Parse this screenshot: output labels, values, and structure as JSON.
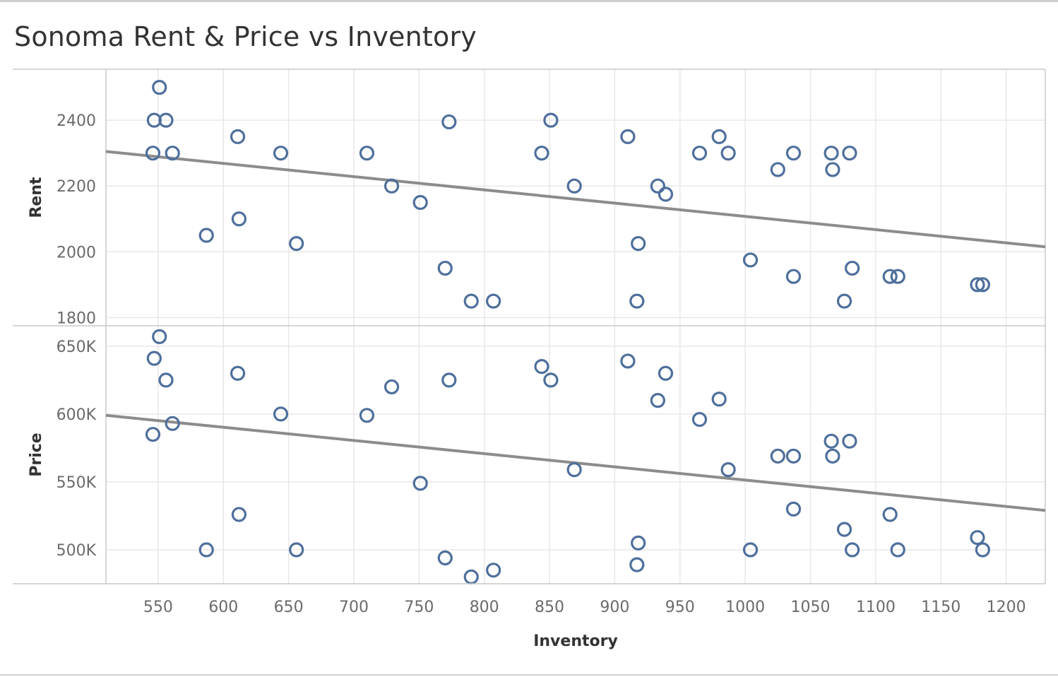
{
  "title": "Sonoma Rent & Price vs Inventory",
  "colors": {
    "marker": "#4e6f9c",
    "trend": "#8c8c8c",
    "grid": "#e8e8e8",
    "border": "#c8c8c8"
  },
  "chart_data": {
    "type": "scatter",
    "title": "Sonoma Rent & Price vs Inventory",
    "xlabel": "Inventory",
    "x_ticks": [
      "550",
      "600",
      "650",
      "700",
      "750",
      "800",
      "850",
      "900",
      "950",
      "1000",
      "1050",
      "1100",
      "1150",
      "1200"
    ],
    "xlim": [
      510,
      1230
    ],
    "panels": [
      {
        "ylabel": "Rent",
        "ylim": [
          1775,
          2555
        ],
        "y_ticks": [
          {
            "value": 1800,
            "label": "1800"
          },
          {
            "value": 2000,
            "label": "2000"
          },
          {
            "value": 2200,
            "label": "2200"
          },
          {
            "value": 2400,
            "label": "2400"
          }
        ],
        "trend": [
          [
            510,
            2305
          ],
          [
            1230,
            2015
          ]
        ],
        "points": [
          [
            551,
            2500
          ],
          [
            547,
            2400
          ],
          [
            556,
            2400
          ],
          [
            546,
            2300
          ],
          [
            561,
            2300
          ],
          [
            611,
            2350
          ],
          [
            644,
            2300
          ],
          [
            710,
            2300
          ],
          [
            729,
            2200
          ],
          [
            751,
            2150
          ],
          [
            773,
            2395
          ],
          [
            770,
            1950
          ],
          [
            790,
            1850
          ],
          [
            807,
            1850
          ],
          [
            844,
            2300
          ],
          [
            851,
            2400
          ],
          [
            869,
            2200
          ],
          [
            910,
            2350
          ],
          [
            933,
            2200
          ],
          [
            939,
            2175
          ],
          [
            918,
            2025
          ],
          [
            917,
            1850
          ],
          [
            965,
            2300
          ],
          [
            980,
            2350
          ],
          [
            987,
            2300
          ],
          [
            1004,
            1975
          ],
          [
            1025,
            2250
          ],
          [
            1037,
            2300
          ],
          [
            1037,
            1925
          ],
          [
            1066,
            2300
          ],
          [
            1067,
            2250
          ],
          [
            1080,
            2300
          ],
          [
            1082,
            1950
          ],
          [
            1076,
            1850
          ],
          [
            1111,
            1925
          ],
          [
            1117,
            1925
          ],
          [
            1178,
            1900
          ],
          [
            1182,
            1900
          ],
          [
            587,
            2050
          ],
          [
            612,
            2100
          ],
          [
            656,
            2025
          ]
        ]
      },
      {
        "ylabel": "Price",
        "ylim": [
          475000,
          665000
        ],
        "y_ticks": [
          {
            "value": 500000,
            "label": "500K"
          },
          {
            "value": 550000,
            "label": "550K"
          },
          {
            "value": 600000,
            "label": "600K"
          },
          {
            "value": 650000,
            "label": "650K"
          }
        ],
        "trend": [
          [
            510,
            599000
          ],
          [
            1230,
            529000
          ]
        ],
        "points": [
          [
            551,
            657000
          ],
          [
            547,
            641000
          ],
          [
            556,
            625000
          ],
          [
            546,
            585000
          ],
          [
            561,
            593000
          ],
          [
            611,
            630000
          ],
          [
            644,
            600000
          ],
          [
            710,
            599000
          ],
          [
            729,
            620000
          ],
          [
            751,
            549000
          ],
          [
            773,
            625000
          ],
          [
            770,
            494000
          ],
          [
            790,
            480000
          ],
          [
            807,
            485000
          ],
          [
            844,
            635000
          ],
          [
            851,
            625000
          ],
          [
            869,
            559000
          ],
          [
            910,
            639000
          ],
          [
            933,
            610000
          ],
          [
            939,
            630000
          ],
          [
            918,
            505000
          ],
          [
            917,
            489000
          ],
          [
            965,
            596000
          ],
          [
            980,
            611000
          ],
          [
            987,
            559000
          ],
          [
            1004,
            500000
          ],
          [
            1025,
            569000
          ],
          [
            1037,
            569000
          ],
          [
            1037,
            530000
          ],
          [
            1066,
            580000
          ],
          [
            1067,
            569000
          ],
          [
            1080,
            580000
          ],
          [
            1082,
            500000
          ],
          [
            1076,
            515000
          ],
          [
            1111,
            526000
          ],
          [
            1117,
            500000
          ],
          [
            1178,
            509000
          ],
          [
            1182,
            500000
          ],
          [
            587,
            500000
          ],
          [
            612,
            526000
          ],
          [
            656,
            500000
          ]
        ]
      }
    ]
  }
}
